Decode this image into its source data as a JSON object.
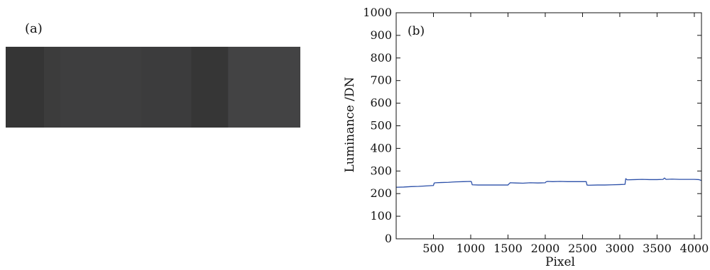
{
  "panel_a": {
    "label": "(a)",
    "stripes": [
      {
        "from": 0.0,
        "to": 0.13,
        "color": "#353535"
      },
      {
        "from": 0.13,
        "to": 0.185,
        "color": "#3c3c3c"
      },
      {
        "from": 0.185,
        "to": 0.46,
        "color": "#3e3e3f"
      },
      {
        "from": 0.46,
        "to": 0.63,
        "color": "#3c3c3d"
      },
      {
        "from": 0.63,
        "to": 0.755,
        "color": "#363636"
      },
      {
        "from": 0.755,
        "to": 1.0,
        "color": "#434344"
      }
    ]
  },
  "chart_data": {
    "type": "line",
    "panel_label": "(b)",
    "xlabel": "Pixel",
    "ylabel": "Luminance /DN",
    "xlim": [
      0,
      4096
    ],
    "ylim": [
      0,
      1000
    ],
    "xticks": [
      500,
      1000,
      1500,
      2000,
      2500,
      3000,
      3500,
      4000
    ],
    "yticks": [
      0,
      100,
      200,
      300,
      400,
      500,
      600,
      700,
      800,
      900,
      1000
    ],
    "grid": false,
    "color": "#2b4fa8",
    "series": [
      {
        "x": [
          0,
          100,
          200,
          300,
          400,
          500,
          510,
          530,
          600,
          700,
          800,
          900,
          1000,
          1010,
          1020,
          1100,
          1200,
          1300,
          1400,
          1500,
          1510,
          1530,
          1600,
          1700,
          1800,
          1900,
          2000,
          2010,
          2030,
          2100,
          2200,
          2300,
          2400,
          2550,
          2560,
          2580,
          2700,
          2800,
          2900,
          3000,
          3070,
          3080,
          3100,
          3200,
          3300,
          3400,
          3500,
          3580,
          3600,
          3620,
          3700,
          3800,
          3900,
          4000,
          4060,
          4096
        ],
        "y": [
          228,
          229,
          231,
          232,
          234,
          236,
          247,
          248,
          249,
          250,
          252,
          253,
          254,
          252,
          239,
          238,
          238,
          238,
          238,
          238,
          242,
          248,
          247,
          246,
          248,
          247,
          248,
          252,
          254,
          253,
          254,
          253,
          253,
          253,
          238,
          237,
          238,
          238,
          239,
          240,
          241,
          266,
          261,
          262,
          263,
          262,
          262,
          263,
          269,
          263,
          264,
          263,
          263,
          263,
          262,
          258
        ]
      }
    ]
  }
}
